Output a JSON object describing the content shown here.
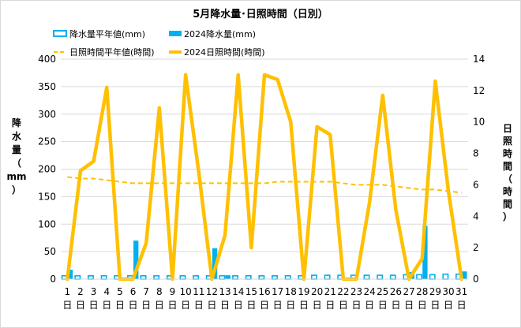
{
  "chart_data": {
    "type": "bar",
    "title": "5月降水量･日照時間（日別）",
    "categories": [
      "1",
      "2",
      "3",
      "4",
      "5",
      "6",
      "7",
      "8",
      "9",
      "10",
      "11",
      "12",
      "13",
      "14",
      "15",
      "16",
      "17",
      "18",
      "19",
      "20",
      "21",
      "22",
      "23",
      "24",
      "25",
      "26",
      "27",
      "28",
      "29",
      "30",
      "31"
    ],
    "category_suffix": "日",
    "y_left": {
      "label_chars": [
        "降",
        "水",
        "量",
        "（",
        "mm",
        "）"
      ],
      "lim": [
        0,
        400
      ],
      "ticks": [
        "0",
        "50",
        "100",
        "150",
        "200",
        "250",
        "300",
        "350",
        "400"
      ]
    },
    "y_right": {
      "label_chars": [
        "日",
        "照",
        "時",
        "間",
        "（",
        "時",
        "間",
        "）"
      ],
      "lim": [
        0,
        14
      ],
      "ticks": [
        "0",
        "2",
        "4",
        "6",
        "8",
        "10",
        "12",
        "14"
      ]
    },
    "series": [
      {
        "name": "降水量平年値(mm)",
        "kind": "bar",
        "axis": "left",
        "color": "#00b0f0",
        "style": "outline",
        "values": [
          6,
          6,
          6,
          6,
          6,
          6,
          6,
          6,
          6,
          6,
          6,
          6,
          6,
          6,
          6,
          6,
          6,
          6,
          6,
          7,
          7,
          7,
          7,
          7,
          7,
          7,
          8,
          8,
          8,
          9,
          9
        ]
      },
      {
        "name": "2024降水量(mm)",
        "kind": "bar",
        "axis": "left",
        "color": "#00b0f0",
        "style": "solid",
        "values": [
          17,
          0,
          0,
          0,
          0,
          70,
          0,
          0,
          0,
          0,
          0,
          56,
          7,
          0,
          0,
          0,
          0,
          0,
          0,
          0,
          0,
          0,
          0,
          0,
          0,
          0,
          13,
          97,
          0,
          0,
          14
        ]
      },
      {
        "name": "日照時間平年値(時間)",
        "kind": "line",
        "axis": "right",
        "color": "#ffc000",
        "style": "dashed",
        "values": [
          6.5,
          6.4,
          6.4,
          6.3,
          6.2,
          6.1,
          6.1,
          6.1,
          6.1,
          6.1,
          6.1,
          6.1,
          6.1,
          6.1,
          6.1,
          6.1,
          6.2,
          6.2,
          6.2,
          6.2,
          6.2,
          6.1,
          6.0,
          6.0,
          6.0,
          5.9,
          5.8,
          5.7,
          5.7,
          5.6,
          5.5
        ]
      },
      {
        "name": "2024日照時間(時間)",
        "kind": "line",
        "axis": "right",
        "color": "#ffc000",
        "style": "thick",
        "values": [
          0.0,
          6.9,
          7.5,
          12.2,
          0.0,
          0.0,
          2.3,
          10.9,
          0.0,
          13.0,
          6.8,
          0.0,
          2.8,
          13.0,
          2.0,
          13.0,
          12.7,
          10.0,
          0.0,
          9.7,
          9.2,
          0.0,
          0.0,
          4.9,
          11.7,
          4.4,
          0.0,
          1.3,
          12.6,
          5.6,
          0.0
        ]
      }
    ],
    "grid": true,
    "legend_position": "top"
  }
}
